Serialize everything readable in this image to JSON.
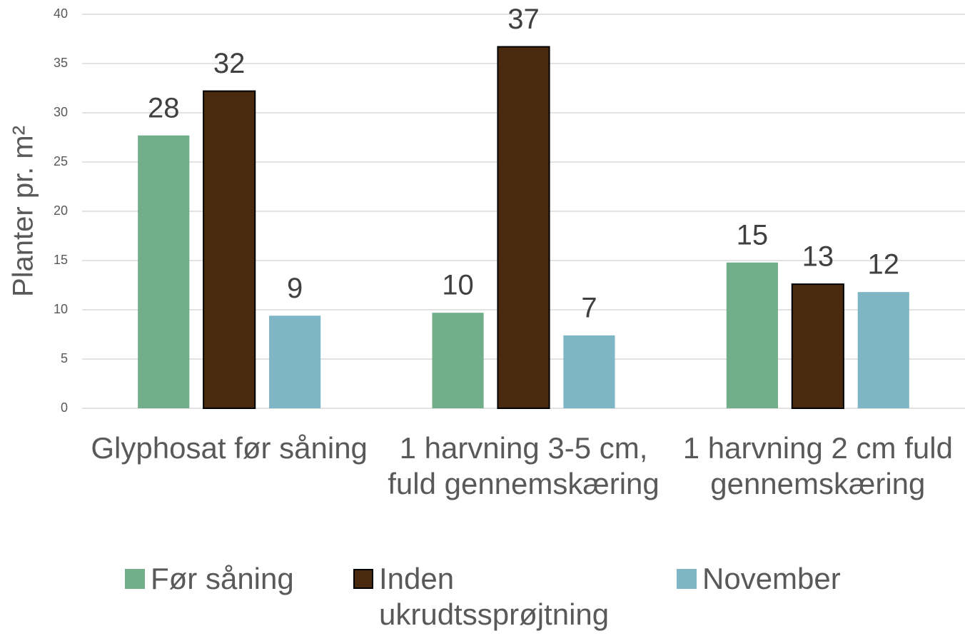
{
  "chart_data": {
    "type": "bar",
    "ylabel": "Planter pr. m²",
    "categories": [
      "Glyphosat før såning",
      "1 harvning 3-5 cm, fuld gennemskæring",
      "1 harvning 2 cm fuld gennemskæring"
    ],
    "series": [
      {
        "name": "Før såning",
        "color": "#72ae8a",
        "values": [
          27.7,
          9.7,
          14.8
        ],
        "value_labels": [
          "28",
          "10",
          "15"
        ]
      },
      {
        "name": "Inden ukrudtssprøjtning",
        "color": "#4a2a0e",
        "outline": "#000000",
        "values": [
          32.2,
          36.7,
          12.6
        ],
        "value_labels": [
          "32",
          "37",
          "13"
        ]
      },
      {
        "name": "November",
        "color": "#7fb6c6",
        "values": [
          9.4,
          7.4,
          11.8
        ],
        "value_labels": [
          "9",
          "7",
          "12"
        ]
      }
    ],
    "ylim": [
      0,
      40
    ],
    "yticks": [
      0,
      5,
      10,
      15,
      20,
      25,
      30,
      35,
      40
    ],
    "grid": true,
    "legend": "bottom"
  }
}
